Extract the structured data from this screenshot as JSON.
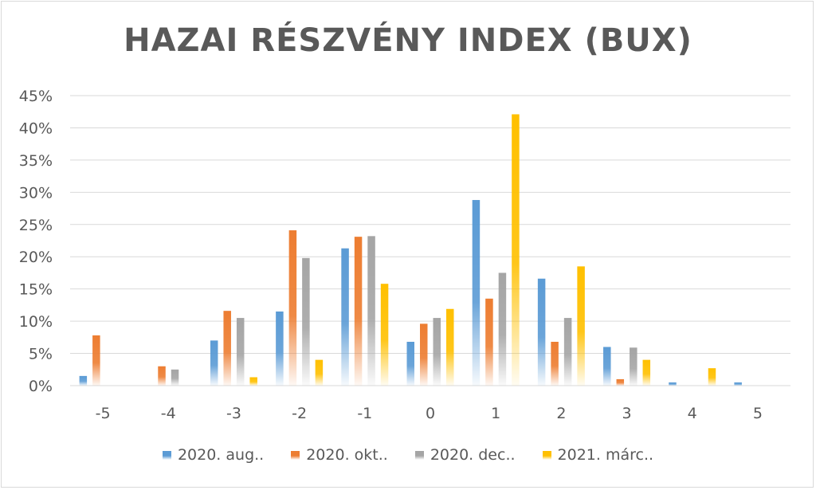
{
  "chart_data": {
    "type": "bar",
    "title": "HAZAI RÉSZVÉNY INDEX (BUX)",
    "categories": [
      "-5",
      "-4",
      "-3",
      "-2",
      "-1",
      "0",
      "1",
      "2",
      "3",
      "4",
      "5"
    ],
    "yticks": [
      "0%",
      "5%",
      "10%",
      "15%",
      "20%",
      "25%",
      "30%",
      "35%",
      "40%",
      "45%"
    ],
    "ylim": [
      0,
      45
    ],
    "grid": true,
    "legend_position": "bottom",
    "series": [
      {
        "name": "2020. aug..",
        "color": "#5b9bd5",
        "values": [
          1.5,
          0,
          7,
          11.5,
          21.3,
          6.8,
          28.8,
          16.6,
          6,
          0.5,
          0.5
        ]
      },
      {
        "name": "2020. okt..",
        "color": "#ed7d31",
        "values": [
          7.8,
          3,
          11.6,
          24.1,
          23.1,
          9.6,
          13.5,
          6.8,
          1,
          0,
          0
        ]
      },
      {
        "name": "2020. dec..",
        "color": "#a5a5a5",
        "values": [
          0,
          2.5,
          10.5,
          19.8,
          23.2,
          10.5,
          17.5,
          10.5,
          5.9,
          0,
          0
        ]
      },
      {
        "name": "2021. márc..",
        "color": "#ffc000",
        "values": [
          0,
          0,
          1.3,
          4,
          15.8,
          11.9,
          42.1,
          18.5,
          4,
          2.7,
          0
        ]
      }
    ]
  }
}
